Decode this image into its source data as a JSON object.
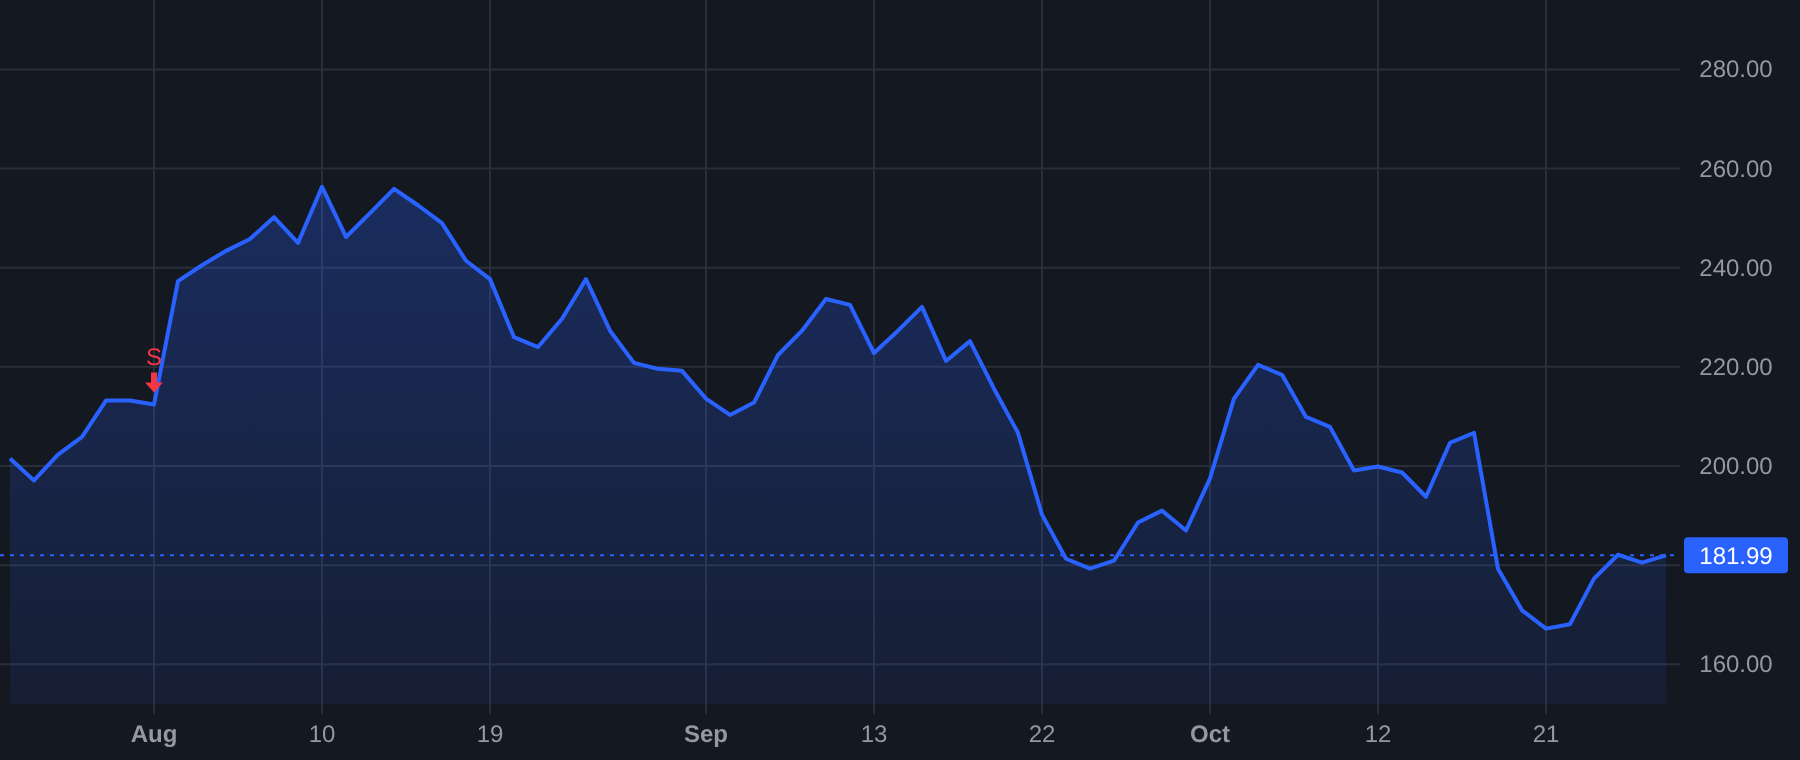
{
  "chart_data": {
    "type": "area",
    "categories": [
      null,
      null,
      null,
      null,
      null,
      null,
      "Aug",
      null,
      null,
      null,
      null,
      null,
      null,
      "10",
      null,
      null,
      null,
      null,
      null,
      null,
      "19",
      null,
      null,
      null,
      null,
      null,
      null,
      null,
      null,
      "Sep",
      null,
      null,
      null,
      null,
      null,
      null,
      "13",
      null,
      null,
      null,
      null,
      null,
      null,
      "22",
      null,
      null,
      null,
      null,
      null,
      null,
      "Oct",
      null,
      null,
      null,
      null,
      null,
      null,
      "12",
      null,
      null,
      null,
      null,
      null,
      null,
      "21",
      null,
      null,
      null,
      null,
      null
    ],
    "series": [
      {
        "color": "#2962ff",
        "values": [
          201.5,
          197.1,
          202.3,
          205.9,
          213.2,
          213.2,
          212.4,
          237.3,
          240.5,
          243.4,
          245.8,
          250.2,
          245.0,
          256.3,
          246.2,
          251.0,
          255.9,
          252.6,
          249.0,
          241.4,
          237.7,
          226.0,
          224.0,
          229.7,
          237.7,
          227.3,
          220.8,
          219.6,
          219.2,
          213.6,
          210.3,
          212.8,
          222.4,
          227.3,
          233.7,
          232.5,
          222.8,
          227.3,
          232.1,
          221.2,
          225.2,
          215.6,
          206.7,
          190.2,
          181.3,
          179.3,
          180.9,
          188.6,
          191.0,
          187.0,
          197.5,
          213.6,
          220.4,
          218.4,
          209.9,
          207.9,
          199.1,
          199.9,
          198.7,
          193.8,
          204.7,
          206.7,
          179.3,
          170.9,
          167.2,
          168.1,
          177.3,
          182.1,
          180.5,
          181.99
        ]
      }
    ],
    "ylim": [
      152,
      294
    ],
    "yticks": [
      {
        "value": 160,
        "label": "160.00"
      },
      {
        "value": 180,
        "label": null
      },
      {
        "value": 200,
        "label": "200.00"
      },
      {
        "value": 220,
        "label": "220.00"
      },
      {
        "value": 240,
        "label": "240.00"
      },
      {
        "value": 260,
        "label": "260.00"
      },
      {
        "value": 280,
        "label": "280.00"
      }
    ],
    "grid": true,
    "ref_lines": [
      {
        "axis": "y",
        "value": 181.99,
        "label": "181.99",
        "color": "#2962ff",
        "line_style": "dotted"
      }
    ],
    "annotations": [
      {
        "text": "S",
        "x": "Aug",
        "y": 212.4
      }
    ]
  }
}
